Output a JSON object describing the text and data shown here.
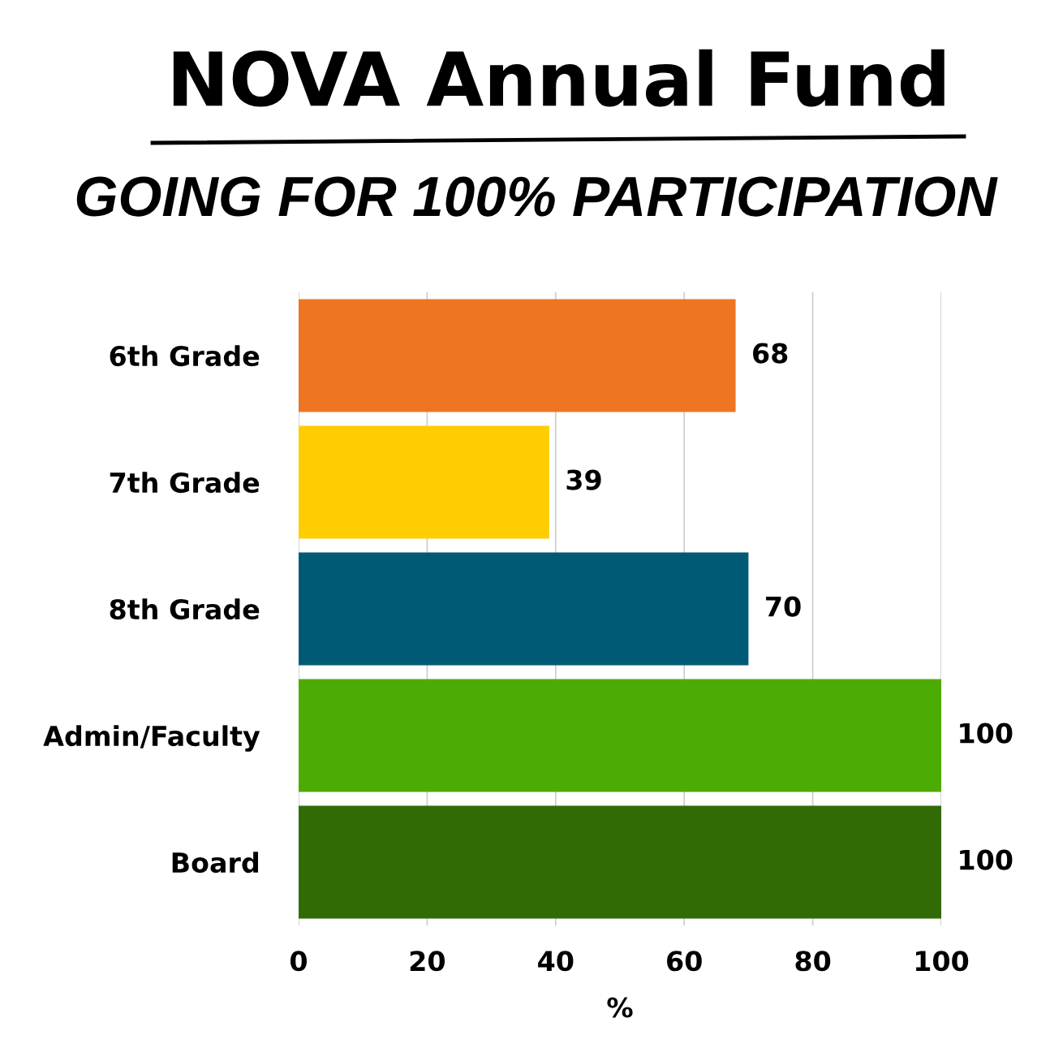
{
  "chart_data": {
    "type": "bar",
    "orientation": "horizontal",
    "title": "NOVA Annual Fund",
    "subtitle": "GOING FOR 100% PARTICIPATION",
    "xlabel": "%",
    "categories": [
      "6th Grade",
      "7th Grade",
      "8th Grade",
      "Admin/Faculty",
      "Board"
    ],
    "values": [
      68,
      39,
      70,
      100,
      100
    ],
    "colors": [
      "#ee7522",
      "#ffcd02",
      "#005a75",
      "#4dac04",
      "#316b05"
    ],
    "xlim": [
      0,
      100
    ],
    "xticks": [
      0,
      20,
      40,
      60,
      80,
      100
    ],
    "grid": "x",
    "data_labels": true,
    "legend": false
  }
}
